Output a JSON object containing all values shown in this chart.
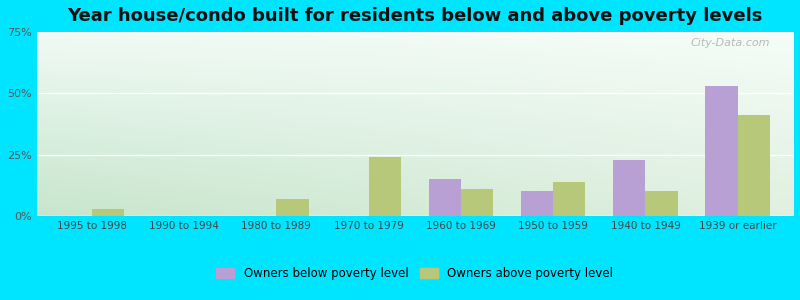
{
  "title": "Year house/condo built for residents below and above poverty levels",
  "categories": [
    "1995 to 1998",
    "1990 to 1994",
    "1980 to 1989",
    "1970 to 1979",
    "1960 to 1969",
    "1950 to 1959",
    "1940 to 1949",
    "1939 or earlier"
  ],
  "below_poverty": [
    0.0,
    0.0,
    0.0,
    0.0,
    15.0,
    10.0,
    23.0,
    53.0
  ],
  "above_poverty": [
    3.0,
    0.0,
    7.0,
    24.0,
    11.0,
    14.0,
    10.0,
    41.0
  ],
  "below_color": "#b89fd4",
  "above_color": "#b8c87a",
  "ylim": [
    0,
    75
  ],
  "yticks": [
    0,
    25,
    50,
    75
  ],
  "ytick_labels": [
    "0%",
    "25%",
    "50%",
    "75%"
  ],
  "bar_width": 0.35,
  "bg_top_left": "#e0f0e8",
  "bg_top_right": "#f0f8f0",
  "bg_bottom_left": "#c8e8c8",
  "bg_bottom_right": "#e8f5e8",
  "outer_bg": "#00e5ff",
  "title_fontsize": 13,
  "legend_below_label": "Owners below poverty level",
  "legend_above_label": "Owners above poverty level",
  "watermark": "City-Data.com",
  "grid_color": "#ffffff",
  "grid_linewidth": 1.0
}
